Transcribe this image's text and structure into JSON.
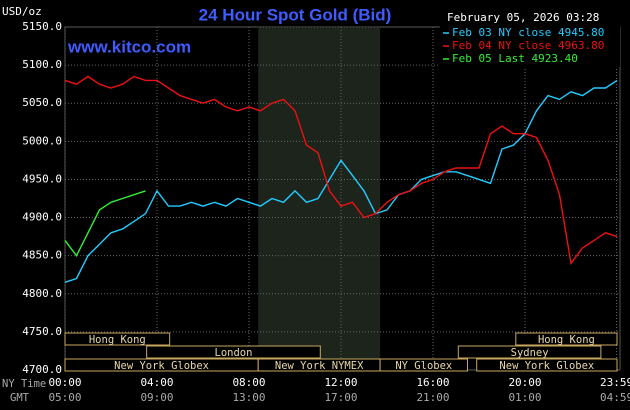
{
  "chart_data": {
    "type": "line",
    "title": "24 Hour Spot Gold (Bid)",
    "unit_label": "USD/oz",
    "watermark": "www.kitco.com",
    "timestamp": "February 05, 2026 03:28",
    "x_row_labels": [
      "NY Time",
      "GMT"
    ],
    "x": [
      0,
      0.5,
      1,
      1.5,
      2,
      2.5,
      3,
      3.5,
      4,
      4.5,
      5,
      5.5,
      6,
      6.5,
      7,
      7.5,
      8,
      8.5,
      9,
      9.5,
      10,
      10.5,
      11,
      11.5,
      12,
      12.5,
      13,
      13.5,
      14,
      14.5,
      15,
      15.5,
      16,
      16.5,
      17,
      17.5,
      18,
      18.5,
      19,
      19.5,
      20,
      20.5,
      21,
      21.5,
      22,
      22.5,
      23,
      23.5,
      24
    ],
    "series": [
      {
        "name": "Feb 03 NY close 4945.80",
        "color": "#22ccff",
        "values": [
          4815,
          4820,
          4850,
          4865,
          4880,
          4885,
          4895,
          4905,
          4935,
          4915,
          4915,
          4920,
          4915,
          4920,
          4915,
          4925,
          4920,
          4915,
          4925,
          4920,
          4935,
          4920,
          4925,
          4950,
          4975,
          4955,
          4935,
          4905,
          4910,
          4930,
          4935,
          4950,
          4955,
          4960,
          4960,
          4955,
          4950,
          4945,
          4990,
          4995,
          5010,
          5040,
          5060,
          5055,
          5065,
          5060,
          5070,
          5070,
          5080
        ]
      },
      {
        "name": "Feb 04 NY close 4963.80",
        "color": "#ee1111",
        "values": [
          5080,
          5075,
          5085,
          5075,
          5070,
          5075,
          5085,
          5080,
          5080,
          5070,
          5060,
          5055,
          5050,
          5055,
          5045,
          5040,
          5045,
          5040,
          5050,
          5055,
          5040,
          4995,
          4985,
          4935,
          4915,
          4920,
          4900,
          4905,
          4920,
          4930,
          4935,
          4945,
          4950,
          4960,
          4965,
          4965,
          4965,
          5010,
          5020,
          5010,
          5010,
          5005,
          4975,
          4930,
          4840,
          4860,
          4870,
          4880,
          4875
        ]
      },
      {
        "name": "Feb 05 Last 4923.40",
        "color": "#33ee33",
        "values": [
          4870,
          4850,
          4880,
          4910,
          4920,
          4925,
          4930,
          4935,
          null,
          null,
          null,
          null,
          null,
          null,
          null,
          null,
          null,
          null,
          null,
          null,
          null,
          null,
          null,
          null,
          null,
          null,
          null,
          null,
          null,
          null,
          null,
          null,
          null,
          null,
          null,
          null,
          null,
          null,
          null,
          null,
          null,
          null,
          null,
          null,
          null,
          null,
          null,
          null,
          null
        ]
      }
    ],
    "xlim": [
      0,
      24
    ],
    "xticks": [
      {
        "value": 0,
        "label": "00:00"
      },
      {
        "value": 4,
        "label": "04:00"
      },
      {
        "value": 8,
        "label": "08:00"
      },
      {
        "value": 12,
        "label": "12:00"
      },
      {
        "value": 16,
        "label": "16:00"
      },
      {
        "value": 20,
        "label": "20:00"
      },
      {
        "value": 23.98,
        "label": "23:59"
      }
    ],
    "x2ticks": [
      {
        "value": 0,
        "label": "05:00"
      },
      {
        "value": 4,
        "label": "09:00"
      },
      {
        "value": 8,
        "label": "13:00"
      },
      {
        "value": 12,
        "label": "17:00"
      },
      {
        "value": 16,
        "label": "21:00"
      },
      {
        "value": 20,
        "label": "01:00"
      },
      {
        "value": 23.98,
        "label": "04:59"
      }
    ],
    "ylim": [
      4700,
      5150
    ],
    "yticks": [
      {
        "value": 4700,
        "label": "4700.0"
      },
      {
        "value": 4750,
        "label": "4750.0"
      },
      {
        "value": 4800,
        "label": "4800.0"
      },
      {
        "value": 4850,
        "label": "4850.0"
      },
      {
        "value": 4900,
        "label": "4900.0"
      },
      {
        "value": 4950,
        "label": "4950.0"
      },
      {
        "value": 5000,
        "label": "5000.0"
      },
      {
        "value": 5050,
        "label": "5050.0"
      },
      {
        "value": 5100,
        "label": "5100.0"
      },
      {
        "value": 5150,
        "label": "5150.0"
      }
    ],
    "grid": true,
    "sessions": [
      [
        {
          "label": "Hong Kong",
          "start": 0,
          "end": 4.55
        },
        {
          "label": "Hong Kong",
          "start": 19.6,
          "end": 24
        }
      ],
      [
        {
          "label": "London",
          "start": 3.55,
          "end": 11.1
        },
        {
          "label": "Sydney",
          "start": 17.1,
          "end": 23.3
        }
      ],
      [
        {
          "label": "New York Globex",
          "start": 0,
          "end": 8.4
        },
        {
          "label": "New York NYMEX",
          "start": 8.4,
          "end": 13.7,
          "highlight": true
        },
        {
          "label": "NY Globex",
          "start": 13.7,
          "end": 17.5
        },
        {
          "label": "New York Globex",
          "start": 17.9,
          "end": 24
        }
      ]
    ]
  }
}
